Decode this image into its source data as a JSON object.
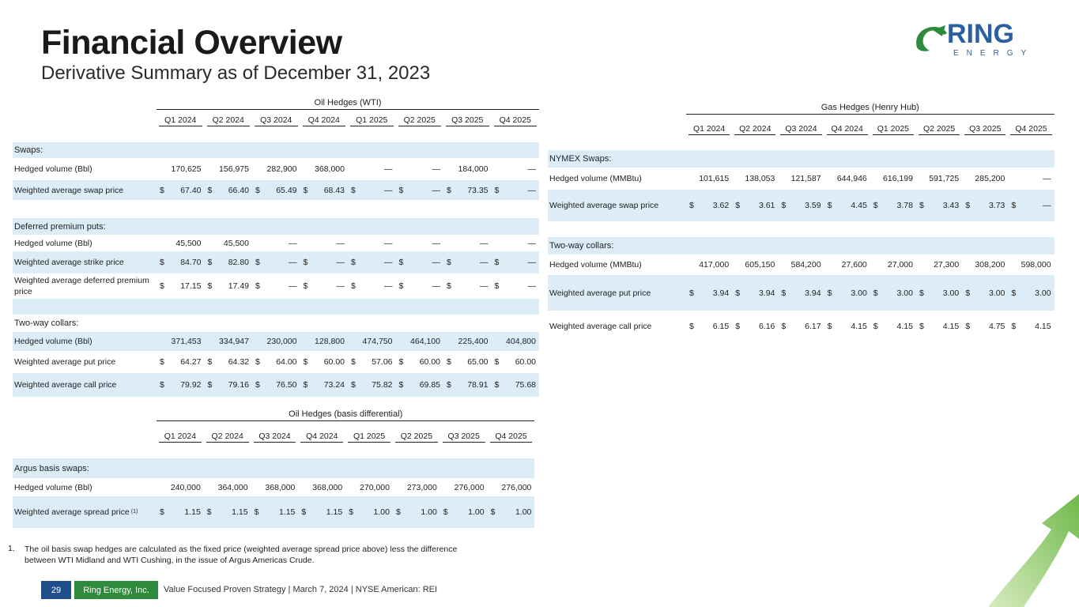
{
  "header": {
    "title": "Financial Overview",
    "subtitle": "Derivative Summary as of December 31, 2023"
  },
  "logo": {
    "name": "RING",
    "tagline": "ENERGY"
  },
  "oil_wti": {
    "title": "Oil Hedges (WTI)",
    "columns": [
      "Q1 2024",
      "Q2 2024",
      "Q3 2024",
      "Q4 2024",
      "Q1 2025",
      "Q2 2025",
      "Q3 2025",
      "Q4 2025"
    ],
    "rows": [
      {
        "section": "Swaps:"
      },
      {
        "label": "Hedged volume (Bbl)",
        "values": [
          "170,625",
          "156,975",
          "282,900",
          "368,000",
          "—",
          "—",
          "184,000",
          "—"
        ]
      },
      {
        "label": "Weighted average swap price",
        "currency": "$",
        "values": [
          "67.40",
          "66.40",
          "65.49",
          "68.43",
          "—",
          "—",
          "73.35",
          "—"
        ]
      },
      {
        "section": "Deferred premium puts:"
      },
      {
        "label": "Hedged volume (Bbl)",
        "values": [
          "45,500",
          "45,500",
          "—",
          "—",
          "—",
          "—",
          "—",
          "—"
        ]
      },
      {
        "label": "Weighted average strike price",
        "currency": "$",
        "values": [
          "84.70",
          "82.80",
          "—",
          "—",
          "—",
          "—",
          "—",
          "—"
        ]
      },
      {
        "label": "Weighted average deferred premium price",
        "currency": "$",
        "values": [
          "17.15",
          "17.49",
          "—",
          "—",
          "—",
          "—",
          "—",
          "—"
        ]
      },
      {
        "section": "Two-way collars:"
      },
      {
        "label": "Hedged volume (Bbl)",
        "values": [
          "371,453",
          "334,947",
          "230,000",
          "128,800",
          "474,750",
          "464,100",
          "225,400",
          "404,800"
        ]
      },
      {
        "label": "Weighted average put price",
        "currency": "$",
        "values": [
          "64.27",
          "64.32",
          "64.00",
          "60.00",
          "57.06",
          "60.00",
          "65.00",
          "60.00"
        ]
      },
      {
        "label": "Weighted average call price",
        "currency": "$",
        "values": [
          "79.92",
          "79.16",
          "76.50",
          "73.24",
          "75.82",
          "69.85",
          "78.91",
          "75.68"
        ]
      }
    ]
  },
  "oil_basis": {
    "title": "Oil Hedges (basis differential)",
    "columns": [
      "Q1 2024",
      "Q2 2024",
      "Q3 2024",
      "Q4 2024",
      "Q1 2025",
      "Q2 2025",
      "Q3 2025",
      "Q4 2025"
    ],
    "rows": [
      {
        "section": "Argus basis swaps:"
      },
      {
        "label": "Hedged volume (Bbl)",
        "values": [
          "240,000",
          "364,000",
          "368,000",
          "368,000",
          "270,000",
          "273,000",
          "276,000",
          "276,000"
        ]
      },
      {
        "label": "Weighted average spread price",
        "note": "(1)",
        "currency": "$",
        "values": [
          "1.15",
          "1.15",
          "1.15",
          "1.15",
          "1.00",
          "1.00",
          "1.00",
          "1.00"
        ]
      }
    ]
  },
  "gas": {
    "title": "Gas Hedges (Henry Hub)",
    "columns": [
      "Q1 2024",
      "Q2 2024",
      "Q3 2024",
      "Q4 2024",
      "Q1 2025",
      "Q2 2025",
      "Q3 2025",
      "Q4 2025"
    ],
    "rows": [
      {
        "section": "NYMEX Swaps:"
      },
      {
        "label": "Hedged volume (MMBtu)",
        "values": [
          "101,615",
          "138,053",
          "121,587",
          "644,946",
          "616,199",
          "591,725",
          "285,200",
          "—"
        ]
      },
      {
        "label": "Weighted average swap price",
        "currency": "$",
        "values": [
          "3.62",
          "3.61",
          "3.59",
          "4.45",
          "3.78",
          "3.43",
          "3.73",
          "—"
        ]
      },
      {
        "section": "Two-way collars:"
      },
      {
        "label": "Hedged volume (MMBtu)",
        "values": [
          "417,000",
          "605,150",
          "584,200",
          "27,600",
          "27,000",
          "27,300",
          "308,200",
          "598,000"
        ]
      },
      {
        "label": "Weighted average put price",
        "currency": "$",
        "values": [
          "3.94",
          "3.94",
          "3.94",
          "3.00",
          "3.00",
          "3.00",
          "3.00",
          "3.00"
        ]
      },
      {
        "label": "Weighted average call price",
        "currency": "$",
        "values": [
          "6.15",
          "6.16",
          "6.17",
          "4.15",
          "4.15",
          "4.15",
          "4.75",
          "4.15"
        ]
      }
    ]
  },
  "footnote": {
    "number": "1.",
    "text": "The oil basis swap hedges are calculated as the fixed price (weighted average spread price above) less the difference between WTI Midland and WTI Cushing, in the issue of Argus Americas Crude."
  },
  "footer": {
    "page": "29",
    "company": "Ring Energy, Inc.",
    "text": "Value Focused Proven Strategy | March 7, 2024 | NYSE American: REI"
  }
}
